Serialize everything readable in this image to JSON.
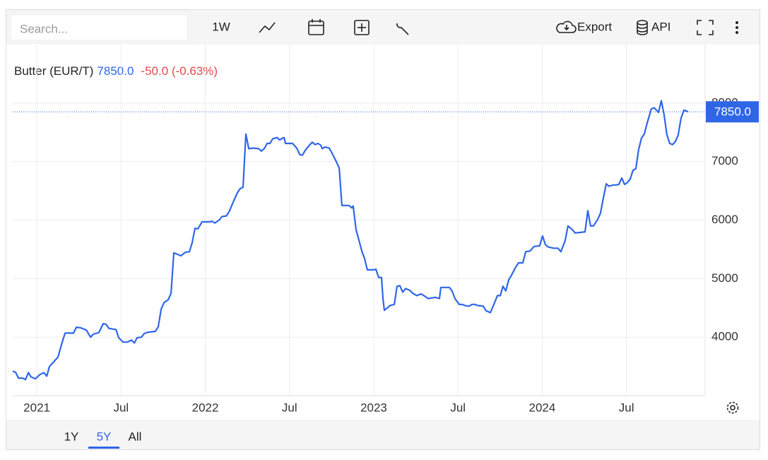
{
  "toolbar": {
    "search_placeholder": "Search...",
    "interval": "1W",
    "export": "Export",
    "api": "API"
  },
  "range_buttons": [
    "1Y",
    "5Y",
    "All"
  ],
  "chart_data": {
    "type": "line",
    "last": {
      "value": 7850,
      "label": "7850.0"
    },
    "change_label": "-50.0 (-0.63%)",
    "xlim": [
      2020.857,
      2024.967
    ],
    "ylim": [
      3000,
      9000
    ],
    "yticks": [
      4000,
      5000,
      6000,
      7000,
      8000
    ],
    "xticks": [
      2021,
      {
        "value": 2021.5,
        "label": "Jul"
      },
      2022,
      {
        "value": 2022.5,
        "label": "Jul"
      },
      2023,
      {
        "value": 2023.5,
        "label": "Jul"
      },
      2024,
      {
        "value": 2024.5,
        "label": "Jul"
      }
    ],
    "grid": true,
    "x": [
      2020.857,
      2020.874,
      2020.891,
      2020.916,
      2020.933,
      2020.95,
      2020.966,
      2020.992,
      2021.017,
      2021.042,
      2021.059,
      2021.075,
      2021.101,
      2021.126,
      2021.143,
      2021.159,
      2021.168,
      2021.218,
      2021.235,
      2021.26,
      2021.294,
      2021.319,
      2021.335,
      2021.369,
      2021.394,
      2021.411,
      2021.428,
      2021.47,
      2021.486,
      2021.512,
      2021.537,
      2021.562,
      2021.579,
      2021.595,
      2021.621,
      2021.637,
      2021.654,
      2021.704,
      2021.721,
      2021.738,
      2021.755,
      2021.78,
      2021.797,
      2021.813,
      2021.839,
      2021.855,
      2021.881,
      2021.906,
      2021.922,
      2021.939,
      2021.956,
      2021.981,
      2022.023,
      2022.04,
      2022.057,
      2022.082,
      2022.099,
      2022.124,
      2022.141,
      2022.166,
      2022.191,
      2022.208,
      2022.224,
      2022.241,
      2022.258,
      2022.283,
      2022.317,
      2022.333,
      2022.35,
      2022.367,
      2022.384,
      2022.4,
      2022.426,
      2022.442,
      2022.459,
      2022.468,
      2022.476,
      2022.518,
      2022.543,
      2022.56,
      2022.577,
      2022.593,
      2022.618,
      2022.635,
      2022.652,
      2022.669,
      2022.686,
      2022.694,
      2022.711,
      2022.736,
      2022.753,
      2022.778,
      2022.795,
      2022.811,
      2022.853,
      2022.87,
      2022.878,
      2022.895,
      2022.912,
      2022.929,
      2022.946,
      2022.962,
      2022.996,
      2023.013,
      2023.029,
      2023.046,
      2023.055,
      2023.063,
      2023.08,
      2023.097,
      2023.122,
      2023.138,
      2023.155,
      2023.172,
      2023.189,
      2023.214,
      2023.231,
      2023.256,
      2023.281,
      2023.298,
      2023.323,
      2023.365,
      2023.39,
      2023.398,
      2023.449,
      2023.465,
      2023.482,
      2023.507,
      2023.524,
      2023.541,
      2023.566,
      2023.583,
      2023.6,
      2023.616,
      2023.65,
      2023.667,
      2023.692,
      2023.709,
      2023.734,
      2023.751,
      2023.767,
      2023.784,
      2023.801,
      2023.818,
      2023.843,
      2023.86,
      2023.885,
      2023.902,
      2023.927,
      2023.952,
      2023.985,
      2024.002,
      2024.019,
      2024.036,
      2024.069,
      2024.094,
      2024.111,
      2024.136,
      2024.153,
      2024.178,
      2024.195,
      2024.229,
      2024.254,
      2024.271,
      2024.287,
      2024.304,
      2024.329,
      2024.346,
      2024.363,
      2024.38,
      2024.396,
      2024.421,
      2024.438,
      2024.455,
      2024.472,
      2024.489,
      2024.505,
      2024.522,
      2024.539,
      2024.556,
      2024.572,
      2024.589,
      2024.606,
      2024.623,
      2024.648,
      2024.665,
      2024.69,
      2024.707,
      2024.723,
      2024.74,
      2024.757,
      2024.774,
      2024.79,
      2024.807,
      2024.824,
      2024.841,
      2024.858,
      2024.866
    ],
    "series": [
      {
        "name": "Butter (EUR/T)",
        "color": "#2f66e8",
        "values": [
          3420,
          3400,
          3300,
          3300,
          3275,
          3395,
          3320,
          3290,
          3360,
          3395,
          3335,
          3500,
          3580,
          3660,
          3840,
          3990,
          4070,
          4070,
          4170,
          4160,
          4120,
          4000,
          4050,
          4080,
          4230,
          4220,
          4150,
          4130,
          3990,
          3915,
          3915,
          3950,
          3900,
          3990,
          4000,
          4060,
          4080,
          4100,
          4180,
          4480,
          4590,
          4640,
          4750,
          5440,
          5410,
          5390,
          5450,
          5460,
          5610,
          5860,
          5850,
          5970,
          5970,
          5980,
          5950,
          6000,
          6060,
          6070,
          6140,
          6310,
          6470,
          6540,
          6560,
          7470,
          7220,
          7230,
          7220,
          7180,
          7220,
          7310,
          7310,
          7390,
          7410,
          7370,
          7400,
          7410,
          7310,
          7310,
          7230,
          7120,
          7110,
          7190,
          7280,
          7330,
          7290,
          7310,
          7280,
          7220,
          7250,
          7230,
          7140,
          7000,
          6890,
          6250,
          6250,
          6210,
          6240,
          5840,
          5660,
          5470,
          5340,
          5150,
          5150,
          5160,
          5020,
          5020,
          4650,
          4460,
          4500,
          4540,
          4560,
          4870,
          4880,
          4770,
          4830,
          4800,
          4750,
          4710,
          4740,
          4710,
          4660,
          4680,
          4660,
          4850,
          4850,
          4790,
          4660,
          4560,
          4560,
          4540,
          4530,
          4560,
          4560,
          4540,
          4530,
          4450,
          4420,
          4530,
          4710,
          4710,
          4870,
          4790,
          4980,
          5060,
          5200,
          5270,
          5270,
          5460,
          5470,
          5550,
          5560,
          5730,
          5580,
          5540,
          5520,
          5520,
          5460,
          5650,
          5900,
          5840,
          5780,
          5790,
          5800,
          6160,
          5900,
          5900,
          6010,
          6120,
          6380,
          6620,
          6580,
          6600,
          6600,
          6610,
          6720,
          6610,
          6640,
          6700,
          6850,
          6880,
          7200,
          7400,
          7470,
          7660,
          7900,
          7920,
          7840,
          8040,
          7810,
          7460,
          7310,
          7290,
          7340,
          7450,
          7740,
          7880,
          7860,
          7850
        ]
      }
    ]
  }
}
